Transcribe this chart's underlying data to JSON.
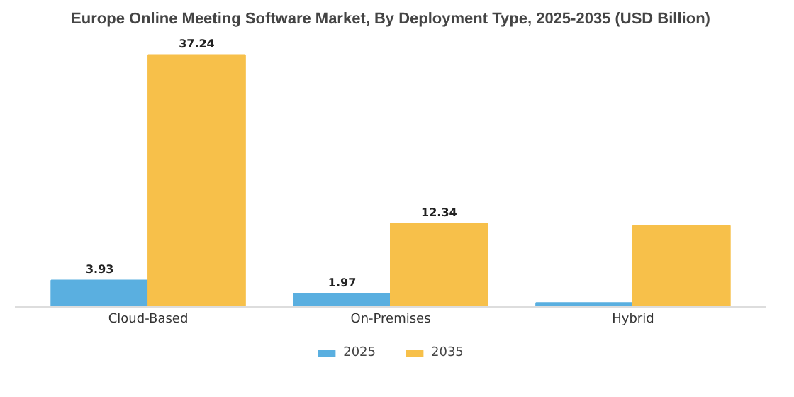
{
  "chart_data": {
    "type": "bar",
    "title": "Europe Online Meeting Software Market, By Deployment Type, 2025-2035 (USD Billion)",
    "categories": [
      "Cloud-Based",
      "On-Premises",
      "Hybrid"
    ],
    "series": [
      {
        "name": "2025",
        "color": "#5aafe0",
        "values": [
          3.93,
          1.97,
          0.6
        ],
        "value_labels": [
          "3.93",
          "1.97",
          null
        ]
      },
      {
        "name": "2035",
        "color": "#f7c04a",
        "values": [
          37.24,
          12.34,
          12.0
        ],
        "value_labels": [
          "37.24",
          "12.34",
          null
        ]
      }
    ],
    "legend": "bottom"
  }
}
